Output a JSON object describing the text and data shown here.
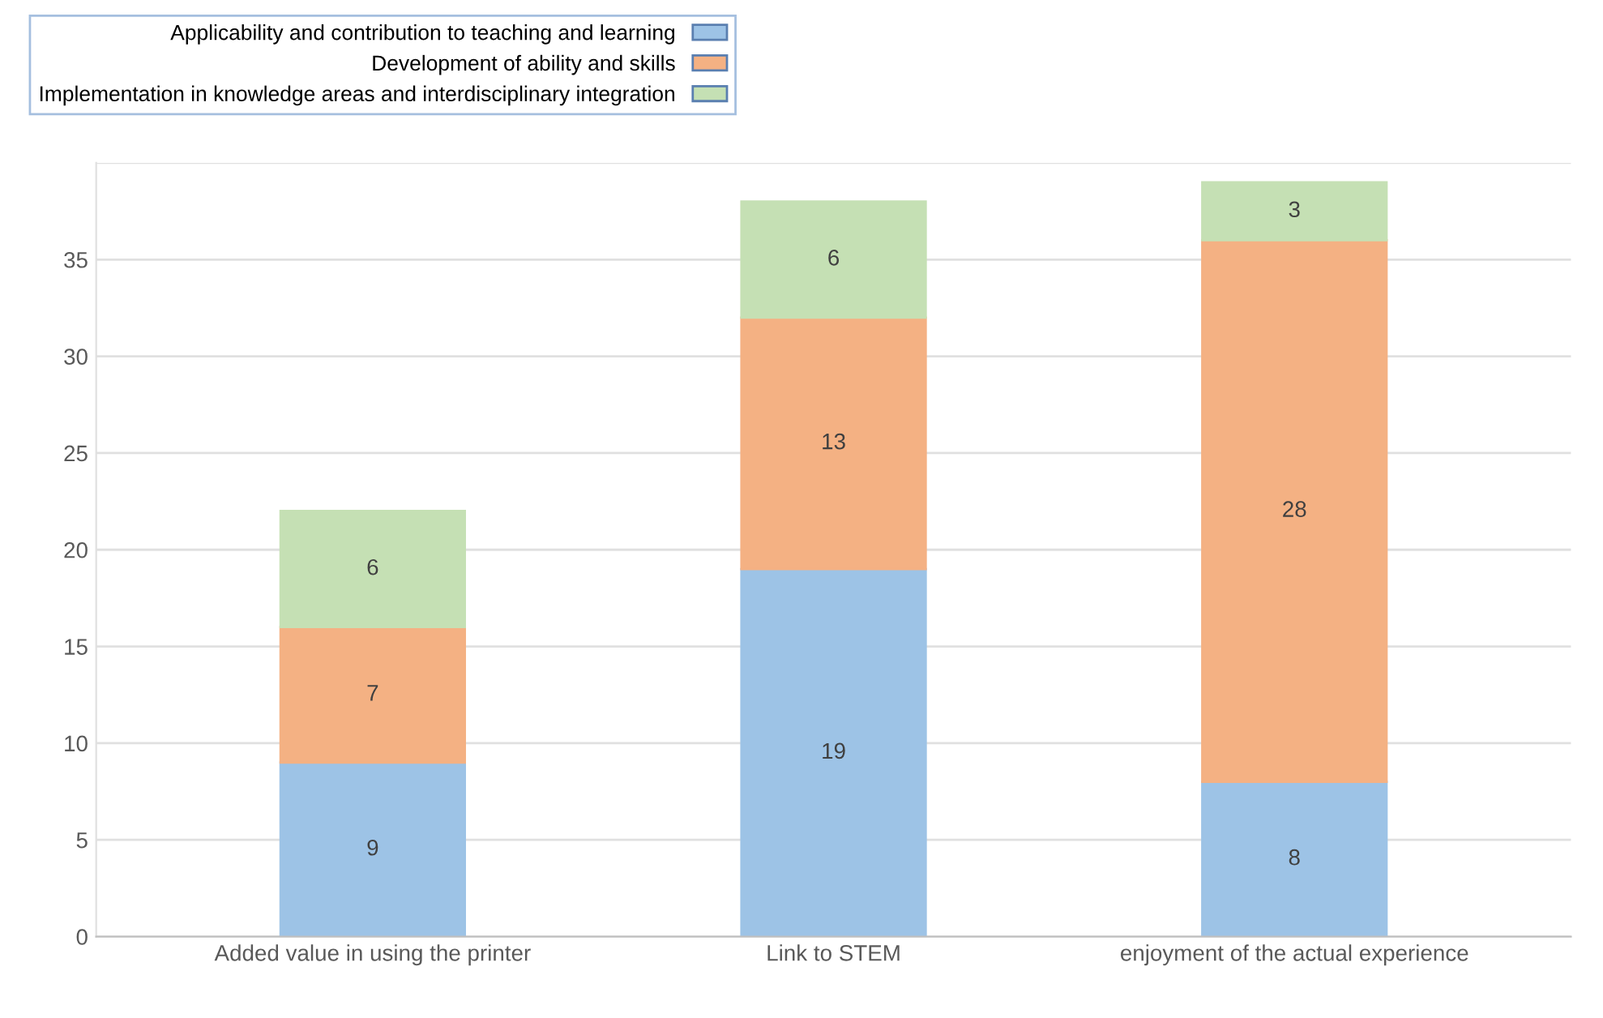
{
  "chart_data": {
    "type": "bar",
    "stacked": true,
    "categories": [
      "Added value in using the printer",
      "Link to STEM",
      "enjoyment of the actual experience"
    ],
    "series": [
      {
        "name": "Applicability and contribution to teaching and learning",
        "color": "#9dc3e6",
        "values": [
          9,
          19,
          8
        ]
      },
      {
        "name": "Development of ability and skills",
        "color": "#f4b183",
        "values": [
          7,
          13,
          28
        ]
      },
      {
        "name": "Implementation in knowledge areas and interdisciplinary integration",
        "color": "#c5e0b4",
        "values": [
          6,
          6,
          3
        ]
      }
    ],
    "ylim": [
      0,
      40
    ],
    "yticks": [
      0,
      5,
      10,
      15,
      20,
      25,
      30,
      35,
      {
        "value": 40,
        "label": null
      }
    ],
    "grid": "y",
    "legend": "top left",
    "data_labels": true
  }
}
